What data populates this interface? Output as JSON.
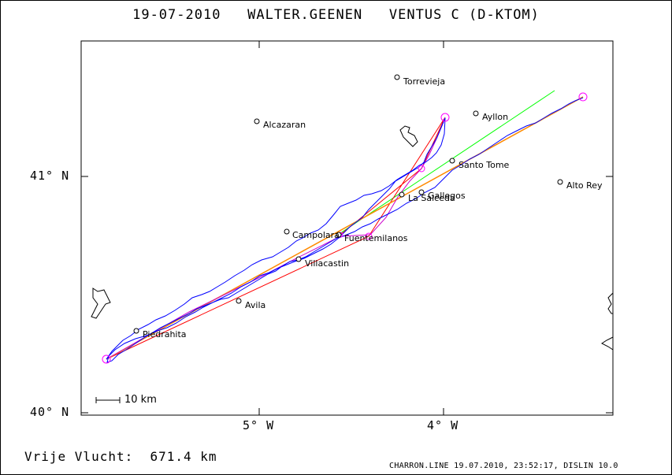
{
  "header": {
    "title": "19-07-2010   WALTER.GEENEN   VENTUS C (D-KTOM)"
  },
  "axes": {
    "lat_labels": [
      "41° N",
      "40° N"
    ],
    "lon_labels": [
      "5° W",
      "4° W"
    ]
  },
  "scale_bar": {
    "label": "10 km"
  },
  "result": {
    "label": "Vrije Vlucht:",
    "distance": "671.4 km",
    "text": "Vrije Vlucht:  671.4 km"
  },
  "footer": {
    "text": "CHARRON.LINE 19.07.2010, 23:52:17, DISLIN 10.0"
  },
  "places": {
    "torrevieja": "Torrevieja",
    "ayllon": "Ayllon",
    "alcazaran": "Alcazaran",
    "santo_tome": "Santo Tome",
    "alto_rey": "Alto Rey",
    "la_salceda": "La Salceda",
    "gallegos": "Gallegos",
    "campolara": "Campolara",
    "fuentemilanos": "Fuentemilanos",
    "villacastin": "Villacastin",
    "avila": "Avila",
    "piedrahita": "Piedrahita"
  },
  "colors": {
    "flight_track": "#0000ff",
    "task_line": "#ff0000",
    "optimized_line": "#ff8c00",
    "wind_line": "#00ff00",
    "turnpoints": "#ff00ff",
    "marker": "#000000"
  }
}
